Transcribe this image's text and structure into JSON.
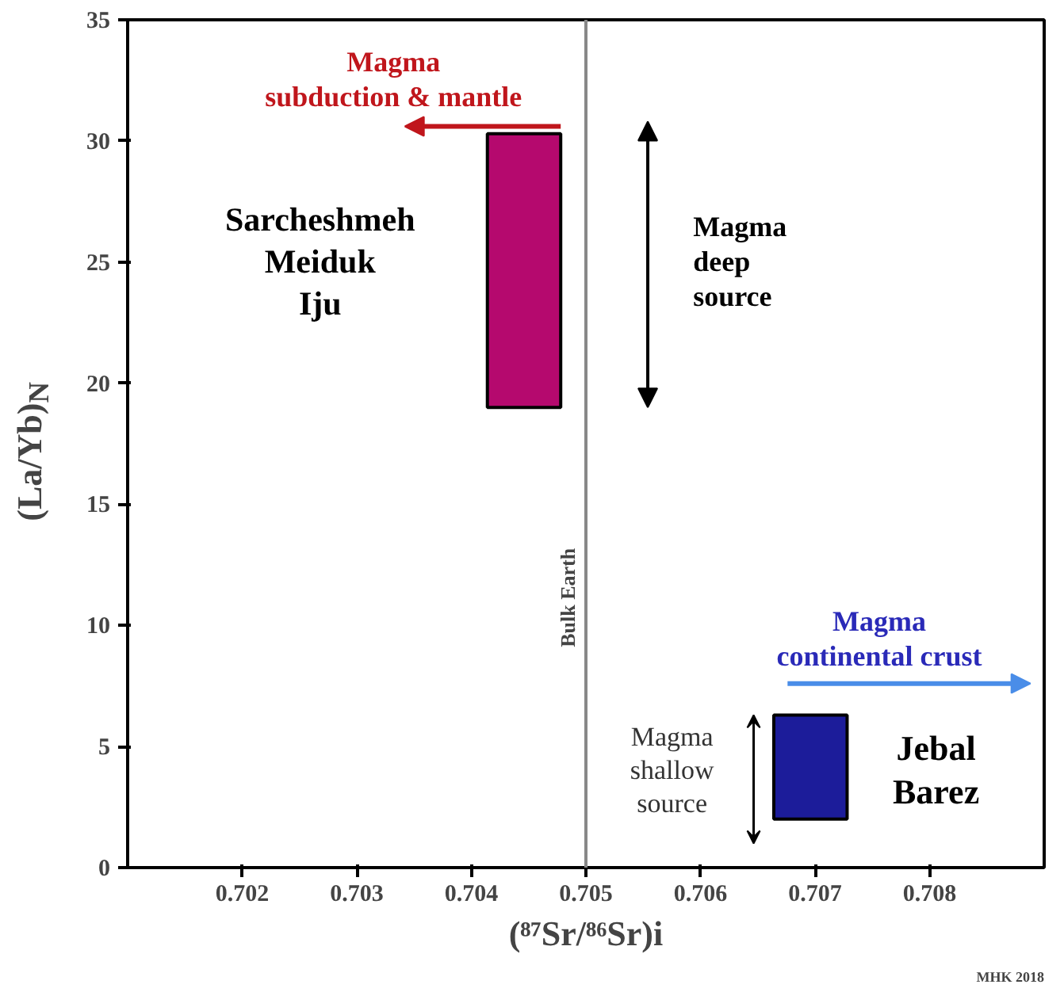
{
  "chart_data": {
    "type": "bar",
    "xlabel": "(⁸⁷Sr/⁸⁶Sr)i",
    "ylabel": "(La/Yb)$_{N}$",
    "x": [
      0.70446,
      0.70696
    ],
    "base": [
      19,
      2
    ],
    "values": [
      11.3,
      4.3
    ],
    "colors": [
      "#b5096e",
      "#1c1c9a"
    ],
    "xlim": [
      0.701,
      0.709
    ],
    "ylim": [
      0,
      35
    ],
    "xticks": [
      0.702,
      0.703,
      0.704,
      0.705,
      0.706,
      0.707,
      0.708
    ],
    "yticks": [
      0,
      5,
      10,
      15,
      20,
      25,
      30,
      35
    ],
    "ref_lines": [
      {
        "axis": "x",
        "value": 0.705,
        "label": "Bulk Earth",
        "color": "#888888"
      }
    ],
    "annotations": [
      "Magma\nsubduction & mantle",
      "Sarcheshmeh\nMeiduk\nIju",
      "Magma\ndeep\nsource",
      "Magma\ncontinental crust",
      "Magma\nshallow\nsource",
      "Jebal\nBarez",
      "MHK 2018"
    ]
  }
}
